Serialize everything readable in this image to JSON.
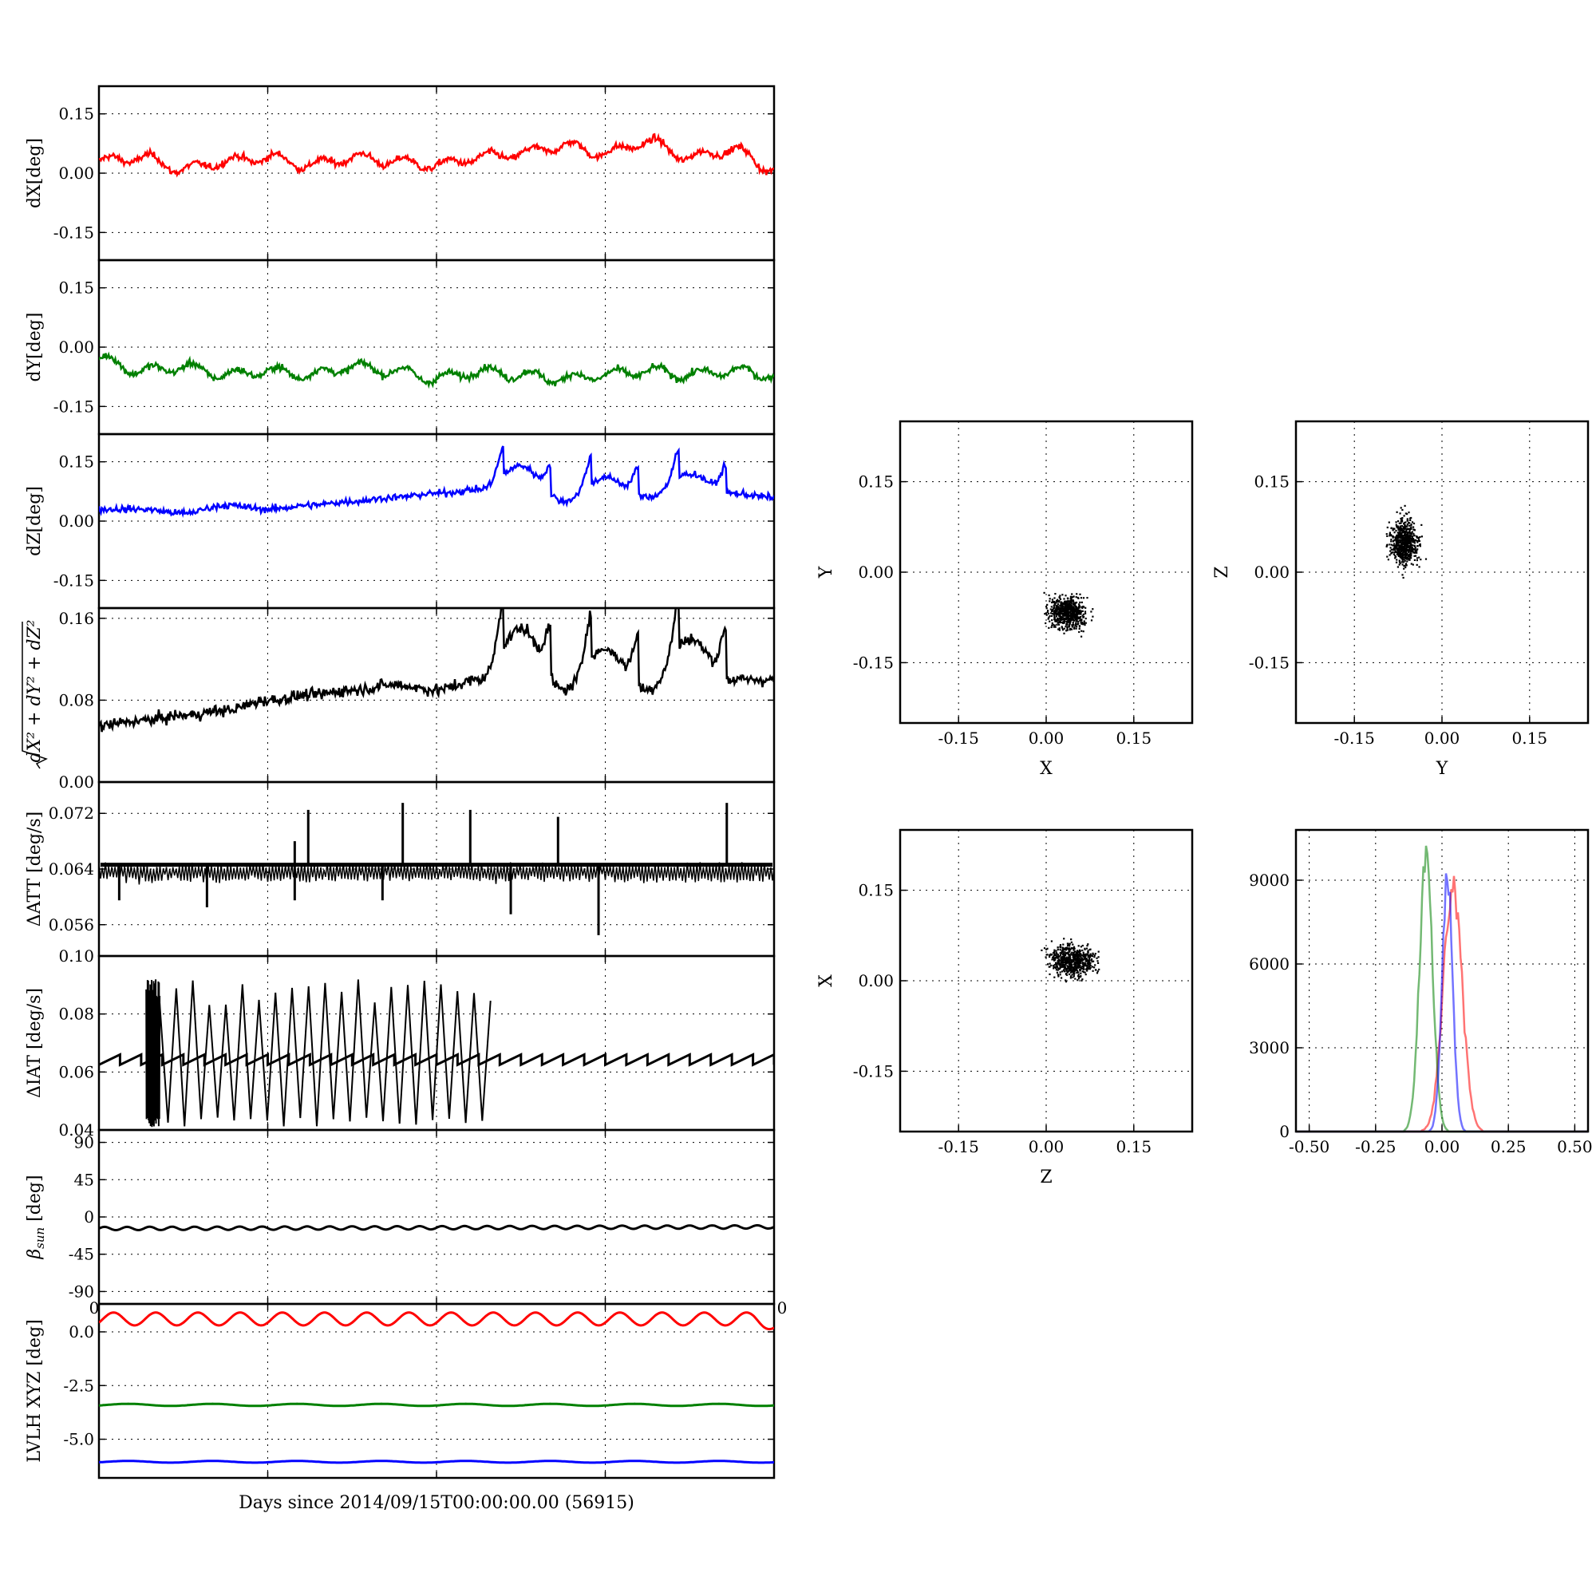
{
  "chart_data": [
    {
      "type": "line",
      "panel": "dX",
      "ylabel": "dX[deg]",
      "ylim": [
        -0.22,
        0.22
      ],
      "yticks": [
        "0.15",
        "0.00",
        "-0.15"
      ],
      "xticks_count": 5,
      "grid": true,
      "series": [
        {
          "color": "#ff0000",
          "x": [
            0,
            0.08,
            0.12,
            0.18,
            0.25,
            0.32,
            0.38,
            0.45,
            0.5,
            0.57,
            0.63,
            0.69,
            0.75,
            0.8,
            0.86,
            0.93,
            1.0
          ],
          "values": [
            0.03,
            0.04,
            0.01,
            0.03,
            0.04,
            0.02,
            0.04,
            0.03,
            0.02,
            0.04,
            0.05,
            0.07,
            0.05,
            0.08,
            0.04,
            0.06,
            0.01
          ]
        }
      ]
    },
    {
      "type": "line",
      "panel": "dY",
      "ylabel": "dY[deg]",
      "ylim": [
        -0.22,
        0.22
      ],
      "yticks": [
        "0.15",
        "0.00",
        "-0.15"
      ],
      "xticks_count": 5,
      "grid": true,
      "series": [
        {
          "color": "#008000",
          "values": [
            -0.03,
            -0.06,
            -0.05,
            -0.07,
            -0.06,
            -0.07,
            -0.05,
            -0.06,
            -0.08,
            -0.06,
            -0.07,
            -0.08,
            -0.07,
            -0.06,
            -0.07,
            -0.06,
            -0.07
          ]
        }
      ]
    },
    {
      "type": "line",
      "panel": "dZ",
      "ylabel": "dZ[deg]",
      "ylim": [
        -0.22,
        0.22
      ],
      "yticks": [
        "0.15",
        "0.00",
        "-0.15"
      ],
      "xticks_count": 5,
      "grid": true,
      "series": [
        {
          "color": "#0000ff",
          "values": [
            0.03,
            0.03,
            0.02,
            0.04,
            0.03,
            0.04,
            0.05,
            0.06,
            0.07,
            0.08,
            0.14,
            0.05,
            0.11,
            0.06,
            0.12,
            0.07,
            0.06
          ]
        }
      ]
    },
    {
      "type": "line",
      "panel": "norm",
      "ylabel": "√(dX²+dY²+dZ²)",
      "ylim": [
        0,
        0.17
      ],
      "yticks": [
        "0.16",
        "0.08",
        "0.00"
      ],
      "xticks_count": 5,
      "grid": true,
      "series": [
        {
          "color": "#000000",
          "values": [
            0.055,
            0.06,
            0.065,
            0.07,
            0.08,
            0.085,
            0.09,
            0.095,
            0.09,
            0.1,
            0.15,
            0.09,
            0.13,
            0.09,
            0.14,
            0.1,
            0.1
          ]
        }
      ]
    },
    {
      "type": "line",
      "panel": "dATT",
      "ylabel": "ΔATT [deg/s]",
      "ylim": [
        0.0515,
        0.0765
      ],
      "yticks": [
        "0.072",
        "0.064",
        "0.056"
      ],
      "xticks_count": 5,
      "grid": true,
      "series": [
        {
          "color": "#000000",
          "baseline": 0.0645,
          "band_low": 0.0625,
          "spikes_up": [
            [
              0.31,
              0.0725
            ],
            [
              0.29,
              0.068
            ],
            [
              0.45,
              0.0735
            ],
            [
              0.55,
              0.0725
            ],
            [
              0.68,
              0.0715
            ],
            [
              0.93,
              0.0735
            ]
          ],
          "spikes_down": [
            [
              0.03,
              0.0595
            ],
            [
              0.16,
              0.0585
            ],
            [
              0.29,
              0.0595
            ],
            [
              0.42,
              0.0595
            ],
            [
              0.61,
              0.0575
            ],
            [
              0.74,
              0.0545
            ]
          ]
        }
      ]
    },
    {
      "type": "line",
      "panel": "dIAT",
      "ylabel": "ΔIAT [deg/s]",
      "ylim": [
        0.04,
        0.1
      ],
      "yticks": [
        "0.10",
        "0.08",
        "0.06",
        "0.04"
      ],
      "xticks_count": 5,
      "grid": true,
      "series": [
        {
          "color": "#000000",
          "sawtooth_low": 0.0625,
          "sawtooth_high": 0.066,
          "bursts": [
            [
              0.07,
              0.09
            ],
            [
              0.58,
              0.09
            ]
          ]
        }
      ]
    },
    {
      "type": "line",
      "panel": "beta_sun",
      "ylabel": "β_sun [deg]",
      "ylim": [
        -105,
        105
      ],
      "yticks": [
        "90",
        "45",
        "0",
        "-45",
        "-90"
      ],
      "xticks_count": 5,
      "grid": true,
      "series": [
        {
          "color": "#000000",
          "mean": -14,
          "amplitude": 2
        }
      ]
    },
    {
      "type": "line",
      "panel": "LVLH",
      "ylabel": "LVLH XYZ [deg]",
      "ylim": [
        -6.8,
        1.3
      ],
      "yticks": [
        "0.0",
        "-2.5",
        "-5.0"
      ],
      "xticks_count": 5,
      "xlabel": "Days since 2014/09/15T00:00:00.00 (56915)",
      "grid": true,
      "series": [
        {
          "color": "#ff0000",
          "mean": 0.6,
          "amplitude": 0.3,
          "cycles": 16
        },
        {
          "color": "#008000",
          "mean": -3.4,
          "amplitude": 0.05,
          "cycles": 8
        },
        {
          "color": "#0000ff",
          "mean": -6.05,
          "amplitude": 0.04,
          "cycles": 8
        }
      ],
      "corner_labels": [
        "0",
        "0"
      ]
    },
    {
      "type": "scatter",
      "panel": "XY",
      "xlabel": "X",
      "ylabel": "Y",
      "xlim": [
        -0.25,
        0.25
      ],
      "ylim": [
        -0.25,
        0.25
      ],
      "xticks": [
        "-0.15",
        "0.00",
        "0.15"
      ],
      "yticks": [
        "0.15",
        "0.00",
        "-0.15"
      ],
      "grid": true,
      "cloud": {
        "center": [
          0.035,
          -0.065
        ],
        "spread": [
          0.025,
          0.02
        ]
      }
    },
    {
      "type": "scatter",
      "panel": "YZ",
      "xlabel": "Y",
      "ylabel": "Z",
      "xlim": [
        -0.25,
        0.25
      ],
      "ylim": [
        -0.25,
        0.25
      ],
      "xticks": [
        "-0.15",
        "0.00",
        "0.15"
      ],
      "yticks": [
        "0.15",
        "0.00",
        "-0.15"
      ],
      "grid": true,
      "cloud": {
        "center": [
          -0.065,
          0.05
        ],
        "spread": [
          0.018,
          0.03
        ]
      }
    },
    {
      "type": "scatter",
      "panel": "ZX",
      "xlabel": "Z",
      "ylabel": "X",
      "xlim": [
        -0.25,
        0.25
      ],
      "ylim": [
        -0.25,
        0.25
      ],
      "xticks": [
        "-0.15",
        "0.00",
        "0.15"
      ],
      "yticks": [
        "0.15",
        "0.00",
        "-0.15"
      ],
      "grid": true,
      "cloud": {
        "center": [
          0.045,
          0.035
        ],
        "spread": [
          0.03,
          0.02
        ]
      }
    },
    {
      "type": "histogram",
      "panel": "hist",
      "xlim": [
        -0.55,
        0.55
      ],
      "ylim": [
        0,
        10800
      ],
      "xticks": [
        "-0.50",
        "-0.25",
        "0.00",
        "0.25",
        "0.50"
      ],
      "yticks": [
        "9000",
        "6000",
        "3000",
        "0"
      ],
      "grid": true,
      "series": [
        {
          "color": "#ff0000",
          "center": 0.04,
          "peak": 9500,
          "width": 0.035
        },
        {
          "color": "#008000",
          "center": -0.06,
          "peak": 10300,
          "width": 0.025
        },
        {
          "color": "#0000ff",
          "center": 0.02,
          "peak": 9800,
          "width": 0.02
        }
      ]
    }
  ]
}
